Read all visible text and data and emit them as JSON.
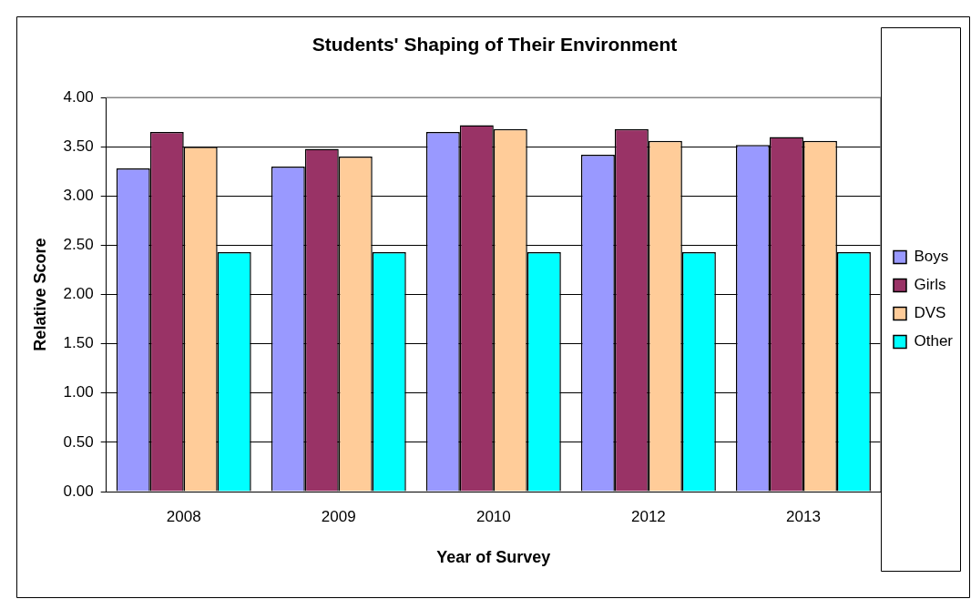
{
  "chart_data": {
    "type": "bar",
    "title": "Students' Shaping of Their Environment",
    "xlabel": "Year of Survey",
    "ylabel": "Relative Score",
    "categories": [
      "2008",
      "2009",
      "2010",
      "2012",
      "2013"
    ],
    "series": [
      {
        "name": "Boys",
        "color": "#9999ff",
        "values": [
          3.28,
          3.3,
          3.65,
          3.42,
          3.52
        ]
      },
      {
        "name": "Girls",
        "color": "#993366",
        "values": [
          3.65,
          3.48,
          3.72,
          3.68,
          3.6
        ]
      },
      {
        "name": "DVS",
        "color": "#ffcc99",
        "values": [
          3.5,
          3.4,
          3.68,
          3.56,
          3.56
        ]
      },
      {
        "name": "Other",
        "color": "#00ffff",
        "values": [
          2.43,
          2.43,
          2.43,
          2.43,
          2.43
        ]
      }
    ],
    "ylim": [
      0,
      4
    ],
    "yticks": [
      {
        "value": 0,
        "label": "0.00"
      },
      {
        "value": 0.5,
        "label": "0.50"
      },
      {
        "value": 1,
        "label": "1.00"
      },
      {
        "value": 1.5,
        "label": "1.50"
      },
      {
        "value": 2,
        "label": "2.00"
      },
      {
        "value": 2.5,
        "label": "2.50"
      },
      {
        "value": 3,
        "label": "3.00"
      },
      {
        "value": 3.5,
        "label": "3.50"
      },
      {
        "value": 4,
        "label": "4.00"
      }
    ],
    "grid": "y",
    "legend": "right"
  }
}
